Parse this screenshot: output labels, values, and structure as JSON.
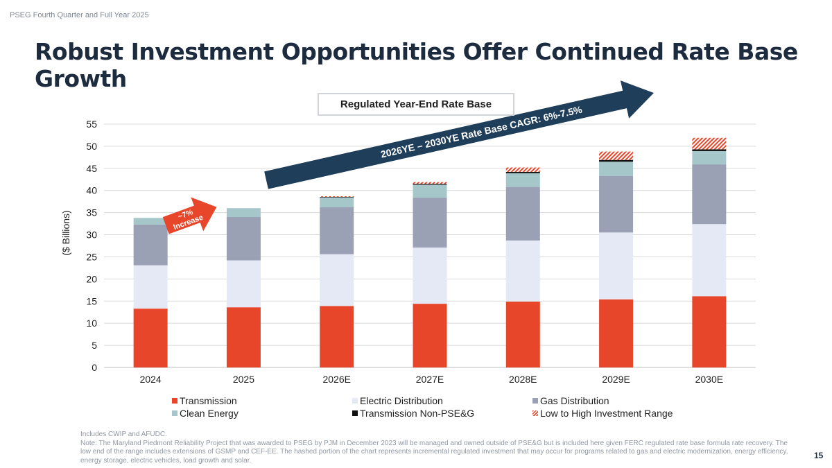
{
  "header": {
    "label": "PSEG Fourth Quarter and Full Year 2025",
    "title": "Robust Investment Opportunities Offer Continued Rate Base Growth"
  },
  "chart_data": {
    "type": "bar",
    "stacked": true,
    "title": "Regulated Year-End Rate Base",
    "ylabel": "($ Billions)",
    "xlabel": "",
    "ylim": [
      0,
      55
    ],
    "yticks": [
      0,
      5,
      10,
      15,
      20,
      25,
      30,
      35,
      40,
      45,
      50,
      55
    ],
    "grid": true,
    "categories": [
      "2024",
      "2025",
      "2026E",
      "2027E",
      "2028E",
      "2029E",
      "2030E"
    ],
    "series": [
      {
        "name": "Transmission",
        "color": "#e8462a",
        "values": [
          13.3,
          13.6,
          13.9,
          14.4,
          14.9,
          15.4,
          16.1
        ]
      },
      {
        "name": "Electric Distribution",
        "color": "#e4e9f5",
        "values": [
          9.8,
          10.6,
          11.7,
          12.7,
          13.8,
          15.1,
          16.3
        ]
      },
      {
        "name": "Gas Distribution",
        "color": "#9ba1b4",
        "values": [
          9.2,
          9.8,
          10.6,
          11.3,
          12.1,
          12.8,
          13.5
        ]
      },
      {
        "name": "Clean Energy",
        "color": "#a5c7ca",
        "values": [
          1.5,
          2.0,
          2.3,
          2.9,
          3.1,
          3.2,
          3.0
        ]
      },
      {
        "name": "Transmission Non-PSE&G",
        "color": "#111111",
        "values": [
          0,
          0,
          0.1,
          0.2,
          0.3,
          0.4,
          0.4
        ]
      },
      {
        "name": "Low to High Investment Range",
        "color": "#e8462a",
        "pattern": "hatch",
        "values": [
          0,
          0,
          0.1,
          0.4,
          1.0,
          1.9,
          2.6
        ]
      }
    ],
    "annotations": [
      {
        "text": "~7% Increase",
        "color": "#e8462a"
      },
      {
        "text": "2026YE – 2030YE Rate Base CAGR: 6%-7.5%",
        "color": "#1f3e5a"
      }
    ]
  },
  "annotations": {
    "increase_line1": "~7%",
    "increase_line2": "Increase",
    "cagr": "2026YE – 2030YE Rate Base CAGR: 6%-7.5%"
  },
  "footnotes": [
    "Includes CWIP and AFUDC.",
    "Note: The Maryland Piedmont Reliability Project that was awarded to PSEG by PJM in December 2023 will be managed and owned outside of PSE&G but is included here given FERC regulated rate base formula rate recovery. The low end of the range includes extensions of GSMP and CEF-EE. The hashed portion of the chart represents incremental regulated investment that may occur for programs related to gas and electric modernization, energy efficiency, energy storage, electric vehicles, load growth and solar."
  ],
  "page_number": "15"
}
